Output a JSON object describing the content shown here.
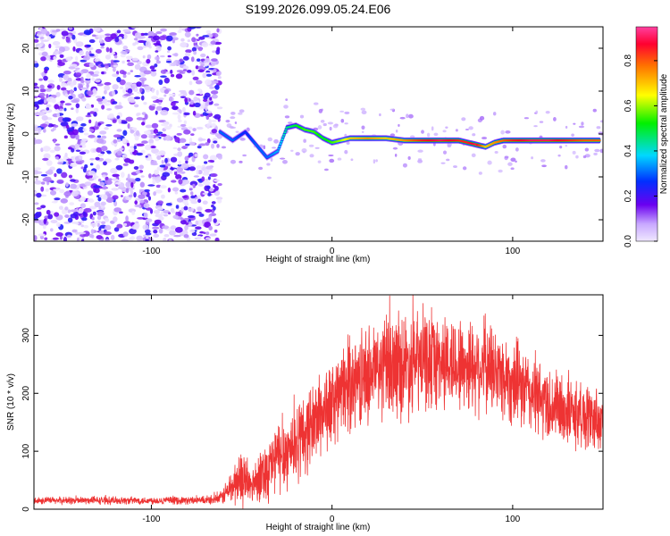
{
  "title": "S199.2026.099.05.24.E06",
  "chart_data": [
    {
      "type": "heatmap",
      "name": "spectrogram",
      "xlabel": "Height of straight line (km)",
      "ylabel": "Frequency (Hz)",
      "xlim": [
        -165,
        150
      ],
      "ylim": [
        -25,
        25
      ],
      "xticks": [
        -100,
        0,
        100
      ],
      "xtick_labels": [
        "-100",
        "0",
        "100"
      ],
      "yticks": [
        -20,
        -10,
        0,
        10,
        20
      ],
      "ytick_labels": [
        "-20",
        "-10",
        "0",
        "10",
        "20"
      ],
      "noise_region_x": [
        -165,
        -62
      ],
      "signal_ridge": {
        "x": [
          -62,
          -55,
          -48,
          -42,
          -36,
          -30,
          -25,
          -20,
          -15,
          -10,
          -5,
          0,
          5,
          10,
          20,
          30,
          40,
          50,
          60,
          70,
          75,
          80,
          85,
          90,
          95,
          100,
          110,
          120,
          130,
          140,
          148
        ],
        "freq": [
          0.5,
          -1.5,
          0.5,
          -2.5,
          -5.5,
          -4.0,
          1.5,
          2.0,
          1.0,
          0.5,
          -1.0,
          -2.0,
          -1.5,
          -1.0,
          -1.0,
          -1.0,
          -1.5,
          -1.5,
          -1.5,
          -1.5,
          -2.0,
          -2.5,
          -3.0,
          -2.0,
          -1.5,
          -1.5,
          -1.5,
          -1.5,
          -1.5,
          -1.5,
          -1.5
        ],
        "amplitude": [
          0.3,
          0.3,
          0.25,
          0.3,
          0.3,
          0.35,
          0.45,
          0.5,
          0.55,
          0.55,
          0.5,
          0.55,
          0.6,
          0.7,
          0.75,
          0.7,
          0.75,
          0.85,
          0.9,
          0.85,
          0.85,
          0.9,
          0.7,
          0.75,
          0.8,
          0.85,
          0.9,
          0.9,
          0.85,
          0.8,
          0.8
        ]
      },
      "colorbar": {
        "label": "Normalized spectral amplitude",
        "range": [
          0.0,
          0.95
        ],
        "ticks": [
          0.0,
          0.2,
          0.4,
          0.6,
          0.8
        ],
        "tick_labels": [
          "0.0",
          "0.2",
          "0.4",
          "0.6",
          "0.8"
        ]
      }
    },
    {
      "type": "line",
      "name": "snr",
      "xlabel": "Height of straight line (km)",
      "ylabel": "SNR (10 * v/v)",
      "xlim": [
        -165,
        150
      ],
      "ylim": [
        0,
        370
      ],
      "xticks": [
        -100,
        0,
        100
      ],
      "xtick_labels": [
        "-100",
        "0",
        "100"
      ],
      "yticks": [
        0,
        100,
        200,
        300
      ],
      "ytick_labels": [
        "0",
        "100",
        "200",
        "300"
      ],
      "color": "#ee3333",
      "envelope": {
        "x": [
          -165,
          -70,
          -62,
          -55,
          -50,
          -45,
          -40,
          -35,
          -30,
          -25,
          -20,
          -15,
          -10,
          -5,
          0,
          5,
          10,
          20,
          30,
          40,
          50,
          60,
          70,
          80,
          90,
          100,
          110,
          120,
          130,
          140,
          150
        ],
        "mean": [
          15,
          15,
          18,
          40,
          55,
          40,
          60,
          70,
          90,
          100,
          115,
          130,
          150,
          170,
          180,
          200,
          215,
          235,
          245,
          250,
          255,
          255,
          250,
          250,
          240,
          220,
          200,
          180,
          170,
          160,
          155
        ],
        "spread": [
          8,
          8,
          12,
          40,
          60,
          35,
          55,
          70,
          80,
          80,
          85,
          85,
          85,
          90,
          90,
          90,
          95,
          100,
          110,
          110,
          105,
          100,
          100,
          100,
          95,
          90,
          85,
          80,
          75,
          70,
          70
        ]
      }
    }
  ]
}
